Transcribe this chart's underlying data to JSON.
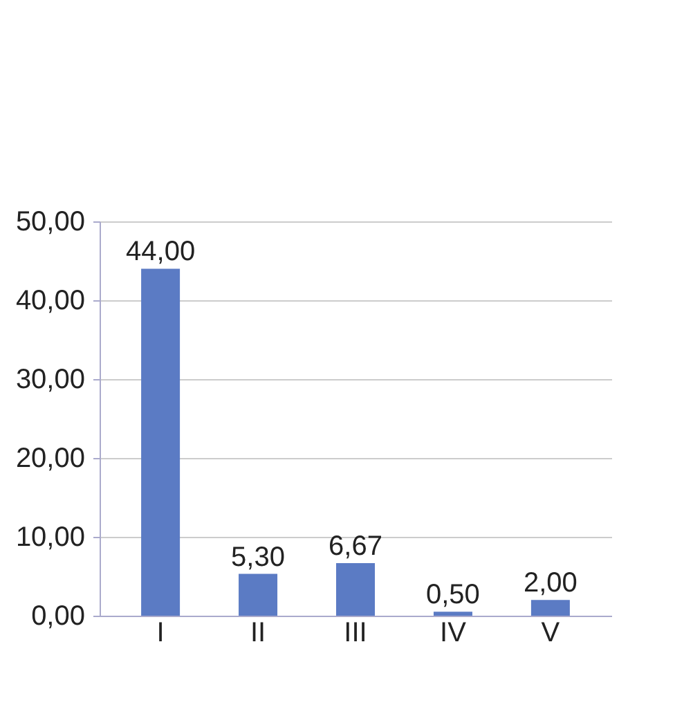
{
  "chart_data": {
    "type": "bar",
    "categories": [
      "I",
      "II",
      "III",
      "IV",
      "V"
    ],
    "values": [
      44.0,
      5.3,
      6.67,
      0.5,
      2.0
    ],
    "value_labels": [
      "44,00",
      "5,30",
      "6,67",
      "0,50",
      "2,00"
    ],
    "color": "#5b7bc4",
    "ylim": [
      0,
      50
    ],
    "yticks": [
      {
        "value": 0,
        "label": "0,00"
      },
      {
        "value": 10,
        "label": "10,00"
      },
      {
        "value": 20,
        "label": "20,00"
      },
      {
        "value": 30,
        "label": "30,00"
      },
      {
        "value": 40,
        "label": "40,00"
      },
      {
        "value": 50,
        "label": "50,00"
      }
    ],
    "grid": "y"
  }
}
